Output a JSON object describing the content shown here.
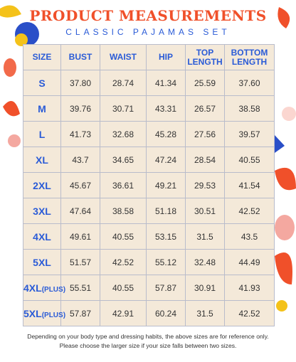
{
  "header": {
    "title": "PRODUCT MEASUREMENTS",
    "subtitle": "CLASSIC PAJAMAS SET"
  },
  "table": {
    "columns": [
      "SIZE",
      "BUST",
      "WAIST",
      "HIP",
      "TOP LENGTH",
      "BOTTOM LENGTH"
    ],
    "rows": [
      {
        "size": "S",
        "values": [
          "37.80",
          "28.74",
          "41.34",
          "25.59",
          "37.60"
        ]
      },
      {
        "size": "M",
        "values": [
          "39.76",
          "30.71",
          "43.31",
          "26.57",
          "38.58"
        ]
      },
      {
        "size": "L",
        "values": [
          "41.73",
          "32.68",
          "45.28",
          "27.56",
          "39.57"
        ]
      },
      {
        "size": "XL",
        "values": [
          "43.7",
          "34.65",
          "47.24",
          "28.54",
          "40.55"
        ]
      },
      {
        "size": "2XL",
        "values": [
          "45.67",
          "36.61",
          "49.21",
          "29.53",
          "41.54"
        ]
      },
      {
        "size": "3XL",
        "values": [
          "47.64",
          "38.58",
          "51.18",
          "30.51",
          "42.52"
        ]
      },
      {
        "size": "4XL",
        "values": [
          "49.61",
          "40.55",
          "53.15",
          "31.5",
          "43.5"
        ]
      },
      {
        "size": "5XL",
        "values": [
          "51.57",
          "42.52",
          "55.12",
          "32.48",
          "44.49"
        ]
      },
      {
        "size": "4XL",
        "note": "(PLUS)",
        "values": [
          "55.51",
          "40.55",
          "57.87",
          "30.91",
          "41.93"
        ]
      },
      {
        "size": "5XL",
        "note": "(PLUS)",
        "values": [
          "57.87",
          "42.91",
          "60.24",
          "31.5",
          "42.52"
        ]
      }
    ]
  },
  "footer": {
    "lines": [
      "Depending on your body type and dressing habits, the above sizes are for reference only.",
      "Please choose the larger size if your size falls between two sizes."
    ]
  }
}
